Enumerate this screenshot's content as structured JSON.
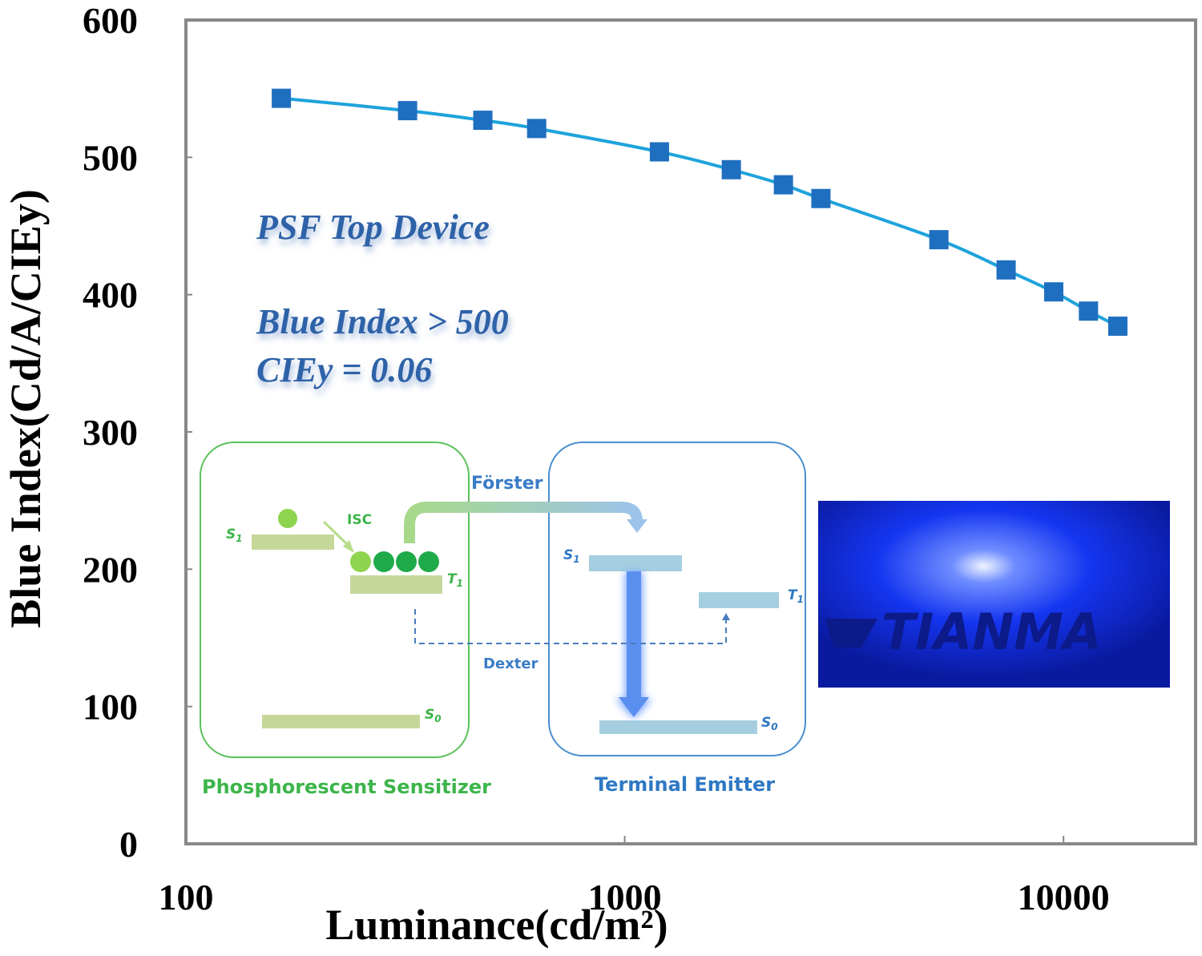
{
  "chart_data": {
    "type": "line",
    "x_label": "Luminance(cd/m²)",
    "y_label": "Blue Index(Cd/A/CIEy)",
    "x": [
      165,
      320,
      475,
      630,
      1200,
      1750,
      2300,
      2800,
      5200,
      7400,
      9500,
      11400,
      13300
    ],
    "series": [
      {
        "name": "PSF Top Device",
        "color": "#1ea3dc",
        "marker_color": "#1f6fc0",
        "values": [
          543,
          534,
          527,
          521,
          504,
          491,
          480,
          470,
          440,
          418,
          402,
          388,
          377
        ]
      }
    ],
    "xlim": [
      100,
      20000
    ],
    "xticks": [
      100,
      1000,
      10000
    ],
    "xscale": "log",
    "ylim": [
      0,
      600
    ],
    "yticks": [
      0,
      100,
      200,
      300,
      400,
      500,
      600
    ],
    "annotations": [
      "PSF Top Device",
      "Blue Index > 500",
      "CIEy = 0.06"
    ]
  },
  "inset": {
    "forster": "Förster",
    "isc": "ISC",
    "dexter": "Dexter",
    "sensitizer": "Phosphorescent Sensitizer",
    "emitter": "Terminal Emitter",
    "levels": [
      {
        "letter": "S",
        "sub": "1"
      },
      {
        "letter": "T",
        "sub": "1"
      },
      {
        "letter": "S",
        "sub": "0"
      },
      {
        "letter": "S",
        "sub": "1"
      },
      {
        "letter": "T",
        "sub": "1"
      },
      {
        "letter": "S",
        "sub": "0"
      }
    ],
    "photo_text": "TIANMA"
  }
}
